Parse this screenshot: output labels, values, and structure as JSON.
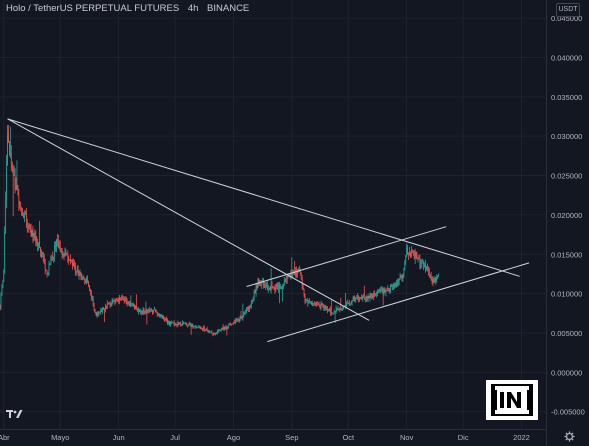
{
  "header": {
    "symbol": "Holo / TetherUS PERPETUAL FUTURES",
    "interval": "4h",
    "exchange": "BINANCE"
  },
  "currency_badge": "USDT",
  "colors": {
    "background": "#131722",
    "up": "#26a69a",
    "down": "#ef5350",
    "trendline": "#d1d4dc",
    "text": "#b2b5be",
    "grid": "#1e222d"
  },
  "icons": [
    "tradingview-logo-icon",
    "watermark-logo-icon",
    "gear-icon"
  ],
  "chart_data": {
    "type": "candlestick",
    "x_ticks": [
      "Abr",
      "Mayo",
      "Jun",
      "Jul",
      "Ago",
      "Sep",
      "Oct",
      "Nov",
      "Dic",
      "2022"
    ],
    "y_ticks": [
      "0.045000",
      "0.040000",
      "0.035000",
      "0.030000",
      "0.025000",
      "0.020000",
      "0.015000",
      "0.010000",
      "0.005000",
      "0.000000",
      "-0.005000"
    ],
    "ylim": [
      -0.0072,
      0.0473
    ],
    "xlim": [
      "2021-03-30",
      "2022-01-14"
    ],
    "grid": true,
    "price_path": [
      [
        "2021-03-30",
        0.0085
      ],
      [
        "2021-04-01",
        0.013
      ],
      [
        "2021-04-03",
        0.031
      ],
      [
        "2021-04-05",
        0.026
      ],
      [
        "2021-04-09",
        0.022
      ],
      [
        "2021-04-14",
        0.0185
      ],
      [
        "2021-04-20",
        0.016
      ],
      [
        "2021-04-24",
        0.0125
      ],
      [
        "2021-04-29",
        0.0163
      ],
      [
        "2021-05-05",
        0.0145
      ],
      [
        "2021-05-10",
        0.0128
      ],
      [
        "2021-05-16",
        0.0113
      ],
      [
        "2021-05-20",
        0.0072
      ],
      [
        "2021-05-27",
        0.0088
      ],
      [
        "2021-06-04",
        0.0093
      ],
      [
        "2021-06-12",
        0.0078
      ],
      [
        "2021-06-20",
        0.0078
      ],
      [
        "2021-06-28",
        0.0062
      ],
      [
        "2021-07-08",
        0.0061
      ],
      [
        "2021-07-18",
        0.0054
      ],
      [
        "2021-07-21",
        0.0049
      ],
      [
        "2021-07-28",
        0.0058
      ],
      [
        "2021-08-04",
        0.0067
      ],
      [
        "2021-08-10",
        0.0085
      ],
      [
        "2021-08-14",
        0.0115
      ],
      [
        "2021-08-20",
        0.0108
      ],
      [
        "2021-08-26",
        0.0108
      ],
      [
        "2021-09-01",
        0.0125
      ],
      [
        "2021-09-05",
        0.0128
      ],
      [
        "2021-09-08",
        0.009
      ],
      [
        "2021-09-15",
        0.0087
      ],
      [
        "2021-09-22",
        0.0077
      ],
      [
        "2021-09-28",
        0.0082
      ],
      [
        "2021-10-05",
        0.0095
      ],
      [
        "2021-10-15",
        0.0098
      ],
      [
        "2021-10-25",
        0.0108
      ],
      [
        "2021-10-30",
        0.0125
      ],
      [
        "2021-11-01",
        0.0155
      ],
      [
        "2021-11-05",
        0.0148
      ],
      [
        "2021-11-10",
        0.0137
      ],
      [
        "2021-11-15",
        0.0118
      ],
      [
        "2021-11-18",
        0.0122
      ]
    ],
    "trendlines": [
      {
        "name": "descending-resistance-1",
        "from": [
          "2021-04-03",
          0.0322
        ],
        "to": [
          "2021-12-31",
          0.0122
        ]
      },
      {
        "name": "descending-resistance-2",
        "from": [
          "2021-04-03",
          0.0322
        ],
        "to": [
          "2021-10-12",
          0.0066
        ]
      },
      {
        "name": "rising-channel-top",
        "from": [
          "2021-08-08",
          0.0109
        ],
        "to": [
          "2021-11-22",
          0.0185
        ]
      },
      {
        "name": "rising-channel-bottom",
        "from": [
          "2021-08-19",
          0.0039
        ],
        "to": [
          "2022-01-05",
          0.0139
        ]
      }
    ]
  }
}
